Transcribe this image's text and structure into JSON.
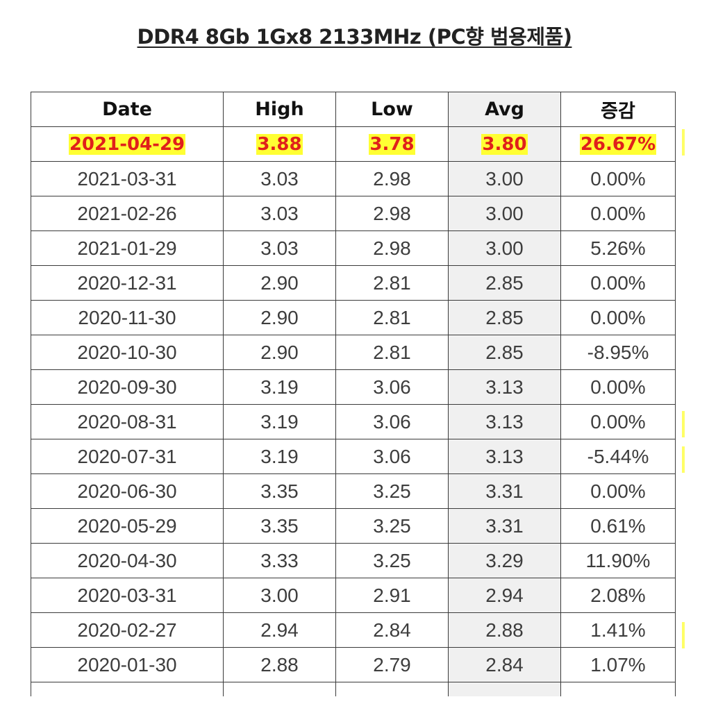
{
  "title": "DDR4 8Gb 1Gx8 2133MHz (PC향 범용제품)",
  "table": {
    "headers": [
      "Date",
      "High",
      "Low",
      "Avg",
      "증감"
    ],
    "highlight_color": "#ffff33",
    "highlight_text_color": "#e0201b",
    "rows": [
      {
        "date": "2021-04-29",
        "high": "3.88",
        "low": "3.78",
        "avg": "3.80",
        "change": "26.67%"
      },
      {
        "date": "2021-03-31",
        "high": "3.03",
        "low": "2.98",
        "avg": "3.00",
        "change": "0.00%"
      },
      {
        "date": "2021-02-26",
        "high": "3.03",
        "low": "2.98",
        "avg": "3.00",
        "change": "0.00%"
      },
      {
        "date": "2021-01-29",
        "high": "3.03",
        "low": "2.98",
        "avg": "3.00",
        "change": "5.26%"
      },
      {
        "date": "2020-12-31",
        "high": "2.90",
        "low": "2.81",
        "avg": "2.85",
        "change": "0.00%"
      },
      {
        "date": "2020-11-30",
        "high": "2.90",
        "low": "2.81",
        "avg": "2.85",
        "change": "0.00%"
      },
      {
        "date": "2020-10-30",
        "high": "2.90",
        "low": "2.81",
        "avg": "2.85",
        "change": "-8.95%"
      },
      {
        "date": "2020-09-30",
        "high": "3.19",
        "low": "3.06",
        "avg": "3.13",
        "change": "0.00%"
      },
      {
        "date": "2020-08-31",
        "high": "3.19",
        "low": "3.06",
        "avg": "3.13",
        "change": "0.00%"
      },
      {
        "date": "2020-07-31",
        "high": "3.19",
        "low": "3.06",
        "avg": "3.13",
        "change": "-5.44%"
      },
      {
        "date": "2020-06-30",
        "high": "3.35",
        "low": "3.25",
        "avg": "3.31",
        "change": "0.00%"
      },
      {
        "date": "2020-05-29",
        "high": "3.35",
        "low": "3.25",
        "avg": "3.31",
        "change": "0.61%"
      },
      {
        "date": "2020-04-30",
        "high": "3.33",
        "low": "3.25",
        "avg": "3.29",
        "change": "11.90%"
      },
      {
        "date": "2020-03-31",
        "high": "3.00",
        "low": "2.91",
        "avg": "2.94",
        "change": "2.08%"
      },
      {
        "date": "2020-02-27",
        "high": "2.94",
        "low": "2.84",
        "avg": "2.88",
        "change": "1.41%"
      },
      {
        "date": "2020-01-30",
        "high": "2.88",
        "low": "2.79",
        "avg": "2.84",
        "change": "1.07%"
      }
    ]
  }
}
